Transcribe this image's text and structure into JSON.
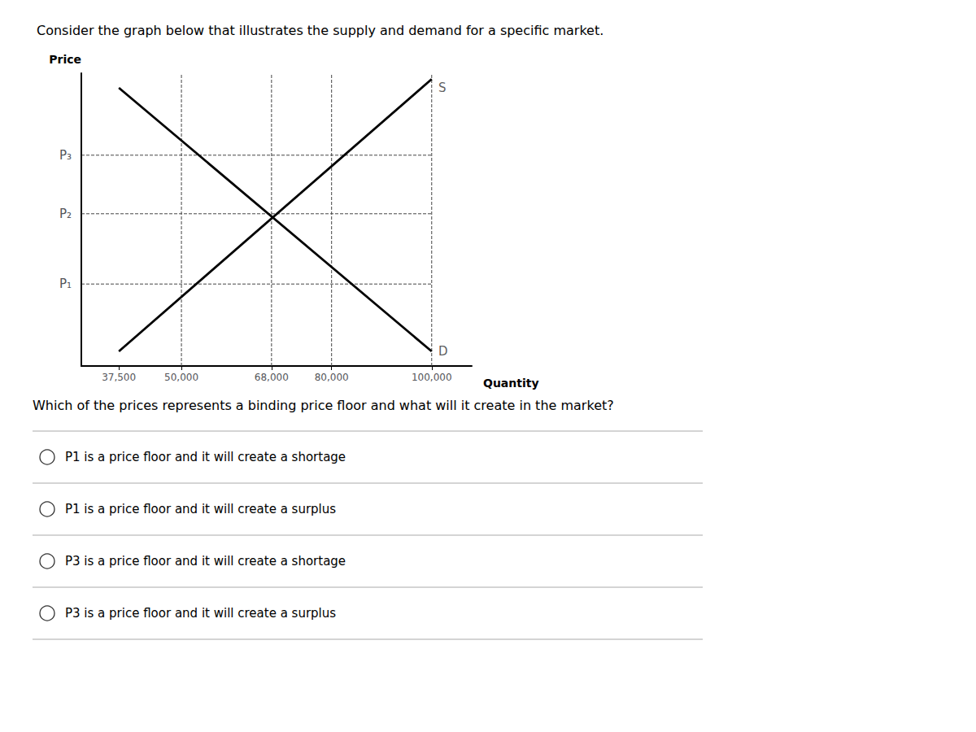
{
  "chart_data": {
    "type": "line",
    "title": "Consider the graph below that illustrates the supply and demand for a specific market.",
    "xlabel": "Quantity",
    "ylabel": "Price",
    "x": [
      37500,
      100000
    ],
    "series": [
      {
        "values": [
          9.5,
          0.5
        ],
        "color": "#000000"
      },
      {
        "values": [
          0.5,
          9.8
        ],
        "color": "#000000"
      }
    ],
    "xlim": [
      30000,
      108000
    ],
    "ylim": [
      0,
      10
    ],
    "xticks": [
      {
        "value": 37500,
        "label": "37,500"
      },
      {
        "value": 50000,
        "label": "50,000"
      },
      {
        "value": 68000,
        "label": "68,000"
      },
      {
        "value": 80000,
        "label": "80,000"
      },
      {
        "value": 100000,
        "label": "100,000"
      }
    ],
    "yticks": [
      {
        "value": 2.8,
        "label": "P₁"
      },
      {
        "value": 5.2,
        "label": "P₂"
      },
      {
        "value": 7.2,
        "label": "P₃"
      }
    ],
    "grid": false,
    "hlines": {
      "color": "#444444",
      "line_style": "dashed",
      "values": [
        2.8,
        5.2,
        7.2
      ],
      "x": [
        30000,
        100000
      ]
    },
    "vlines": {
      "color": "#444444",
      "line_style": "dashed",
      "values": [
        50000,
        68000,
        80000,
        100000
      ]
    },
    "annotations": [
      {
        "text": "S",
        "x": 101000,
        "y": 9.5
      },
      {
        "text": "D",
        "x": 101000,
        "y": 0.5
      }
    ],
    "question": "Which of the prices represents a binding price floor and what will it create in the market?",
    "options": [
      "P1 is a price floor and it will create a shortage",
      "P1 is a price floor and it will create a surplus",
      "P3 is a price floor and it will create a shortage",
      "P3 is a price floor and it will create a surplus"
    ]
  }
}
